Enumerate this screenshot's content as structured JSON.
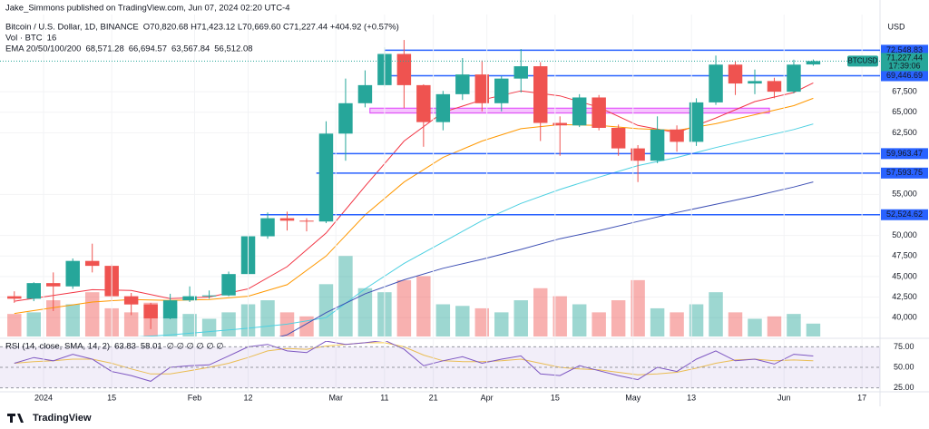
{
  "chart_data": {
    "type": "candlestick",
    "header": {
      "publisher": "Jake_Simmons published on TradingView.com, Jun 07, 2024 02:20 UTC-4",
      "symbol": "Bitcoin / U.S. Dollar, 1D, BINANCE",
      "ohlc": "O70,820.68 H71,423.12 L70,669.60 C71,227.44 +404.92 (+0.57%)"
    },
    "y_axis_label": "USD",
    "watermark": "TradingView",
    "up_color": "#26a69a",
    "down_color": "#ef5350",
    "x": [
      -6,
      -2,
      2,
      6,
      10,
      14,
      18,
      22,
      26,
      30,
      34,
      38,
      42,
      46,
      50,
      54,
      58,
      62,
      66,
      70,
      74,
      78,
      82,
      86,
      90,
      94,
      98,
      102,
      106,
      110,
      114,
      118,
      122,
      126,
      130,
      134,
      138,
      142,
      146,
      150,
      154,
      158
    ],
    "open": [
      42600,
      42300,
      44200,
      43800,
      46900,
      46300,
      42600,
      41600,
      39900,
      42100,
      42600,
      42700,
      45300,
      49900,
      52100,
      51800,
      51700,
      62400,
      66100,
      68300,
      72100,
      68300,
      63800,
      67200,
      69600,
      66100,
      69100,
      70600,
      63700,
      63400,
      66800,
      63100,
      60600,
      59100,
      62900,
      61400,
      66200,
      70800,
      68500,
      68800,
      67500,
      70820.68
    ],
    "high": [
      43200,
      44300,
      45500,
      47200,
      49000,
      46500,
      43000,
      41800,
      42900,
      43800,
      43300,
      45600,
      50300,
      52800,
      52900,
      52100,
      63900,
      69100,
      70100,
      72900,
      73800,
      68400,
      67600,
      71600,
      71300,
      69400,
      72700,
      71100,
      64500,
      67200,
      67100,
      63500,
      61000,
      64500,
      63400,
      66700,
      71900,
      71200,
      70200,
      69200,
      71400,
      71423.12
    ],
    "low": [
      41800,
      42000,
      40800,
      43500,
      45500,
      42000,
      40300,
      38600,
      39800,
      41900,
      42300,
      42600,
      45100,
      49600,
      50600,
      50500,
      51500,
      59100,
      65600,
      68100,
      65500,
      60800,
      62800,
      66500,
      65100,
      65100,
      67400,
      61500,
      59700,
      63200,
      62800,
      59700,
      56500,
      58800,
      60200,
      60900,
      65900,
      67100,
      67200,
      66700,
      67300,
      70669.6
    ],
    "close": [
      42300,
      44200,
      43800,
      46900,
      46300,
      42600,
      41600,
      39900,
      42100,
      42600,
      42700,
      45300,
      49900,
      52100,
      51800,
      51700,
      62400,
      66100,
      68300,
      72100,
      68300,
      63800,
      67200,
      69600,
      66100,
      69100,
      70600,
      63700,
      63400,
      66800,
      63100,
      60600,
      59100,
      62900,
      61400,
      66200,
      70800,
      68500,
      68800,
      67500,
      70800,
      71227.44
    ],
    "xlim": [
      -8.94,
      171.7
    ],
    "xticks": [
      {
        "value": 0,
        "label": "2024"
      },
      {
        "value": 14,
        "label": "15"
      },
      {
        "value": 31,
        "label": "Feb"
      },
      {
        "value": 42,
        "label": "12"
      },
      {
        "value": 60,
        "label": "Mar"
      },
      {
        "value": 70,
        "label": "11"
      },
      {
        "value": 80,
        "label": "21"
      },
      {
        "value": 91,
        "label": "Apr"
      },
      {
        "value": 105,
        "label": "15"
      },
      {
        "value": 121,
        "label": "May"
      },
      {
        "value": 133,
        "label": "13"
      },
      {
        "value": 152,
        "label": "Jun"
      },
      {
        "value": 168,
        "label": "17"
      }
    ],
    "ylim": [
      37700,
      76900
    ],
    "yticks": [
      {
        "value": 40000,
        "label": "40,000"
      },
      {
        "value": 42500,
        "label": "42,500"
      },
      {
        "value": 45000,
        "label": "45,000"
      },
      {
        "value": 47500,
        "label": "47,500"
      },
      {
        "value": 50000,
        "label": "50,000"
      },
      {
        "value": 55000,
        "label": "55,000"
      },
      {
        "value": 62500,
        "label": "62,500"
      },
      {
        "value": 65000,
        "label": "65,000"
      },
      {
        "value": 67500,
        "label": "67,500"
      }
    ],
    "levels": [
      {
        "value": 72548.83,
        "label": "72,548.83",
        "from": 70
      },
      {
        "value": 69446.69,
        "label": "69,446.69",
        "from": 70
      },
      {
        "value": 59963.47,
        "label": "59,963.47",
        "from": 58
      },
      {
        "value": 57593.75,
        "label": "57,593.75",
        "from": 56
      },
      {
        "value": 52524.62,
        "label": "52,524.62",
        "from": 44.5
      }
    ],
    "level_color": "#2962ff",
    "zone": {
      "low": 64900,
      "high": 65500,
      "from": 67,
      "to": 149,
      "color": "#e040fb"
    },
    "last_price": {
      "value": 71227.44,
      "label": "71,227.44",
      "symbol": "BTCUSD",
      "countdown": "17:39:06",
      "color": "#26a69a"
    },
    "volume": {
      "legend": "Vol · BTC",
      "value_label": "16",
      "vlim": [
        0,
        400
      ],
      "values": [
        28,
        30,
        45,
        40,
        55,
        35,
        30,
        42,
        38,
        28,
        22,
        30,
        40,
        45,
        30,
        25,
        65,
        100,
        60,
        55,
        70,
        75,
        40,
        38,
        35,
        30,
        45,
        60,
        50,
        40,
        30,
        45,
        70,
        35,
        30,
        40,
        55,
        30,
        22,
        25,
        28,
        16
      ]
    },
    "ema": {
      "legend": "EMA 20/50/100/200",
      "x": [
        -6,
        2,
        10,
        18,
        26,
        34,
        42,
        50,
        58,
        66,
        74,
        82,
        90,
        98,
        106,
        114,
        122,
        130,
        138,
        146,
        154,
        158
      ],
      "series": [
        {
          "color": "#f23645",
          "value_label": "68,571.28",
          "values": [
            42000,
            42700,
            43400,
            43300,
            42300,
            42500,
            43500,
            46200,
            50300,
            56000,
            61500,
            65000,
            66500,
            67600,
            67000,
            65600,
            63400,
            62500,
            64300,
            66300,
            67400,
            68571.28
          ]
        },
        {
          "color": "#ff9800",
          "value_label": "66,694.57",
          "values": [
            40500,
            41200,
            41900,
            42200,
            42100,
            42200,
            42600,
            44000,
            47500,
            52500,
            56500,
            59500,
            61500,
            63000,
            63500,
            63400,
            63000,
            62800,
            63600,
            64700,
            65800,
            66694.57
          ]
        },
        {
          "color": "#4dd0e1",
          "value_label": "63,567.84",
          "values": [
            36500,
            36900,
            37300,
            37600,
            37900,
            38300,
            38700,
            39200,
            40000,
            43500,
            46600,
            49200,
            51800,
            53900,
            55600,
            57100,
            58500,
            59500,
            60700,
            61800,
            62900,
            63567.84
          ]
        },
        {
          "color": "#3f51b5",
          "value_label": "56,512.08",
          "values": [
            31000,
            32000,
            33000,
            34000,
            35000,
            35800,
            36700,
            37900,
            40600,
            42900,
            44600,
            46000,
            47100,
            48300,
            49600,
            50600,
            51700,
            52800,
            53800,
            54800,
            55900,
            56512.08
          ]
        }
      ]
    },
    "rsi": {
      "legend": "RSI (14, close, SMA, 14, 2)",
      "value_label": "63.83",
      "sma_label": "58.01",
      "extra": "∅ ∅ ∅ ∅ ∅ ∅",
      "color": "#7e57c2",
      "sma_color": "#f7c948",
      "ylim": [
        20.2,
        82.1
      ],
      "yticks": [
        {
          "value": 75,
          "label": "75.00"
        },
        {
          "value": 50,
          "label": "50.00"
        },
        {
          "value": 25,
          "label": "25.00"
        }
      ],
      "values": [
        55,
        62,
        58,
        66,
        60,
        45,
        40,
        33,
        50,
        52,
        53,
        64,
        75,
        78,
        70,
        68,
        82,
        78,
        80,
        83,
        72,
        52,
        58,
        63,
        55,
        60,
        64,
        42,
        40,
        52,
        46,
        40,
        35,
        50,
        45,
        60,
        70,
        58,
        60,
        54,
        66,
        63.83
      ],
      "sma": [
        55,
        57,
        58,
        60,
        60,
        55,
        48,
        42,
        42,
        46,
        50,
        55,
        62,
        70,
        73,
        72,
        76,
        78,
        80,
        80,
        75,
        65,
        58,
        57,
        57,
        58,
        60,
        55,
        50,
        48,
        47,
        44,
        41,
        42,
        44,
        49,
        55,
        59,
        60,
        58,
        59,
        58.01
      ]
    }
  }
}
